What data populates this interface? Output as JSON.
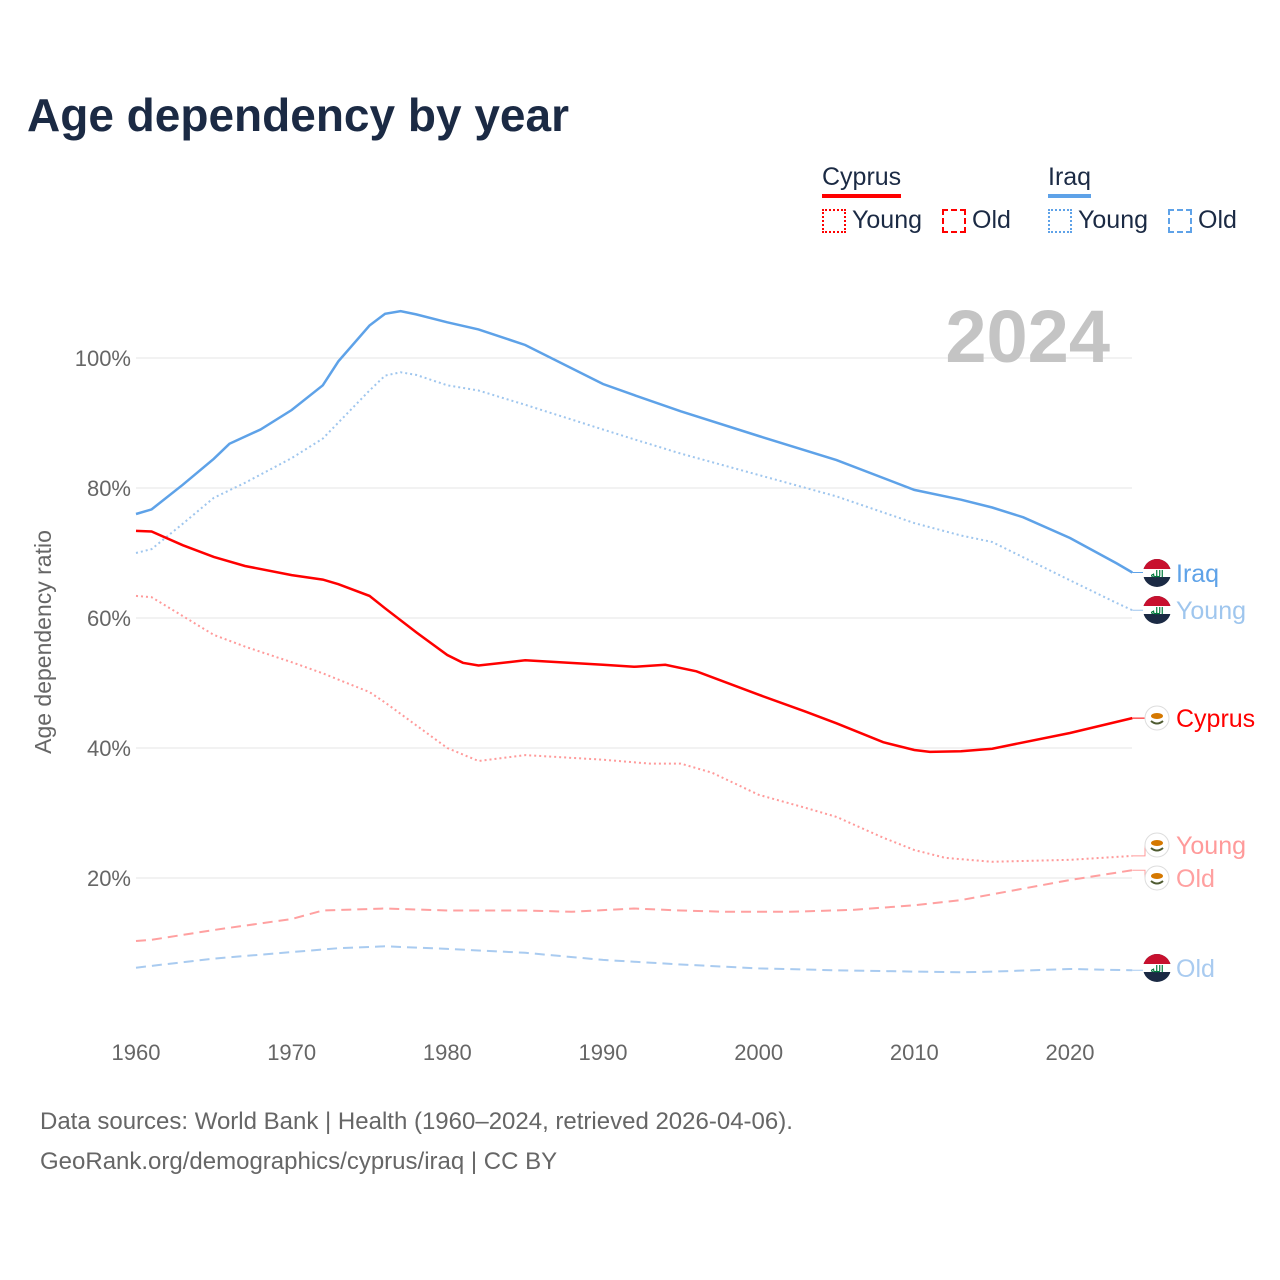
{
  "title": "Age dependency by year",
  "year_label": "2024",
  "legend": {
    "countries": [
      {
        "name": "Cyprus",
        "color": "#ff0000",
        "young": "Young",
        "old": "Old"
      },
      {
        "name": "Iraq",
        "color": "#5ea2e8",
        "young": "Young",
        "old": "Old"
      }
    ]
  },
  "end_labels": {
    "iraq_total": "Iraq",
    "iraq_young": "Young",
    "iraq_old": "Old",
    "cyprus_total": "Cyprus",
    "cyprus_young": "Young",
    "cyprus_old": "Old"
  },
  "footer": {
    "line1": "Data sources: World Bank | Health (1960–2024, retrieved 2026-04-06).",
    "line2": "GeoRank.org/demographics/cyprus/iraq | CC BY"
  },
  "chart_data": {
    "type": "line",
    "title": "Age dependency by year",
    "xlabel": "",
    "ylabel": "Age dependency ratio",
    "xlim": [
      1960,
      2024
    ],
    "ylim": [
      0,
      110
    ],
    "x_ticks": [
      "1960",
      "1970",
      "1980",
      "1990",
      "2000",
      "2010",
      "2020"
    ],
    "y_ticks": [
      {
        "v": 20,
        "label": "20%"
      },
      {
        "v": 40,
        "label": "40%"
      },
      {
        "v": 60,
        "label": "60%"
      },
      {
        "v": 80,
        "label": "80%"
      },
      {
        "v": 100,
        "label": "100%"
      }
    ],
    "series": [
      {
        "name": "Iraq",
        "key": "iraq_total",
        "color": "#5ea2e8",
        "dash": "solid",
        "x": [
          1960,
          1961,
          1963,
          1965,
          1966,
          1968,
          1970,
          1972,
          1973,
          1975,
          1976,
          1977,
          1978,
          1980,
          1982,
          1985,
          1990,
          1992,
          1995,
          2000,
          2005,
          2010,
          2013,
          2015,
          2017,
          2020,
          2023,
          2024
        ],
        "y": [
          76,
          76.7,
          80.5,
          84.5,
          86.8,
          89,
          92,
          95.8,
          99.5,
          105,
          106.8,
          107.2,
          106.7,
          105.5,
          104.4,
          102,
          96,
          94.3,
          91.8,
          88,
          84.3,
          79.7,
          78.2,
          77,
          75.5,
          72.3,
          68.4,
          67
        ]
      },
      {
        "name": "Iraq Young",
        "key": "iraq_young",
        "color": "#9fc6ee",
        "dash": "dotted",
        "x": [
          1960,
          1961,
          1963,
          1965,
          1967,
          1970,
          1972,
          1975,
          1976,
          1977,
          1978,
          1980,
          1982,
          1985,
          1990,
          1992,
          1995,
          2000,
          2005,
          2010,
          2013,
          2015,
          2020,
          2023,
          2024
        ],
        "y": [
          70,
          70.6,
          74.5,
          78.5,
          80.8,
          84.6,
          87.6,
          95,
          97.3,
          97.8,
          97.4,
          95.8,
          95,
          92.8,
          89,
          87.5,
          85.3,
          82,
          78.7,
          74.6,
          72.7,
          71.7,
          65.8,
          62.3,
          61.2
        ]
      },
      {
        "name": "Iraq Old",
        "key": "iraq_old",
        "color": "#a9cbf0",
        "dash": "dashed",
        "x": [
          1960,
          1965,
          1970,
          1973,
          1976,
          1980,
          1985,
          1990,
          1995,
          2000,
          2005,
          2010,
          2013,
          2015,
          2020,
          2024
        ],
        "y": [
          6.2,
          7.6,
          8.6,
          9.2,
          9.5,
          9.1,
          8.5,
          7.4,
          6.7,
          6.1,
          5.8,
          5.6,
          5.5,
          5.6,
          6,
          5.8
        ]
      },
      {
        "name": "Cyprus",
        "key": "cyprus_total",
        "color": "#ff0000",
        "dash": "solid",
        "x": [
          1960,
          1961,
          1963,
          1965,
          1967,
          1970,
          1972,
          1973,
          1975,
          1976,
          1978,
          1980,
          1981,
          1982,
          1985,
          1990,
          1992,
          1994,
          1996,
          2000,
          2003,
          2005,
          2008,
          2010,
          2011,
          2013,
          2015,
          2020,
          2024
        ],
        "y": [
          73.4,
          73.3,
          71.2,
          69.4,
          68,
          66.6,
          65.9,
          65.2,
          63.4,
          61.5,
          57.8,
          54.3,
          53.1,
          52.7,
          53.5,
          52.8,
          52.5,
          52.8,
          51.8,
          48.2,
          45.6,
          43.8,
          40.9,
          39.7,
          39.4,
          39.5,
          39.9,
          42.3,
          44.6
        ]
      },
      {
        "name": "Cyprus Young",
        "key": "cyprus_young",
        "color": "#ff9a9a",
        "dash": "dotted",
        "x": [
          1960,
          1961,
          1963,
          1965,
          1967,
          1970,
          1972,
          1975,
          1976,
          1978,
          1980,
          1982,
          1985,
          1990,
          1993,
          1995,
          1997,
          2000,
          2003,
          2005,
          2008,
          2010,
          2012,
          2015,
          2020,
          2024
        ],
        "y": [
          63.4,
          63.2,
          60.3,
          57.4,
          55.6,
          53.2,
          51.5,
          48.6,
          47,
          43.5,
          40,
          38,
          38.9,
          38.2,
          37.6,
          37.6,
          36.2,
          32.8,
          30.8,
          29.4,
          26.2,
          24.3,
          23.1,
          22.5,
          22.8,
          23.4
        ]
      },
      {
        "name": "Cyprus Old",
        "key": "cyprus_old",
        "color": "#ffa0a0",
        "dash": "dashed",
        "x": [
          1960,
          1961,
          1965,
          1970,
          1972,
          1976,
          1980,
          1985,
          1988,
          1992,
          1995,
          1998,
          2002,
          2006,
          2010,
          2013,
          2015,
          2020,
          2024
        ],
        "y": [
          10.3,
          10.5,
          12,
          13.7,
          15,
          15.3,
          15,
          15,
          14.8,
          15.3,
          15,
          14.8,
          14.8,
          15.1,
          15.8,
          16.6,
          17.5,
          19.7,
          21.2
        ]
      }
    ]
  }
}
